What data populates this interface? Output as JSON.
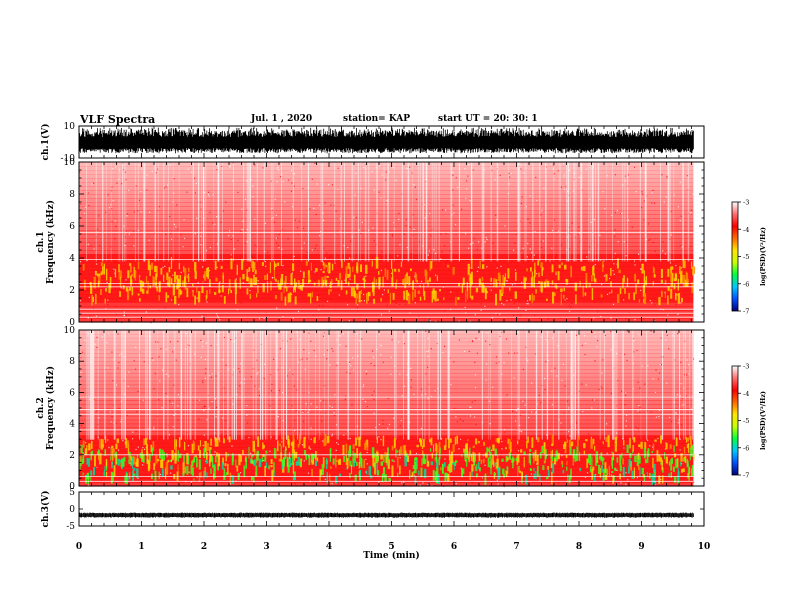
{
  "header": {
    "title": "VLF Spectra",
    "date": "Jul. 1 , 2020",
    "station": "station= KAP",
    "start": "start UT = 20: 30: 1"
  },
  "colorbar": {
    "label": "log(PSD)(V²/Hz)",
    "ticks": [
      "-3",
      "-4",
      "-5",
      "-6",
      "-7"
    ],
    "range": [
      -7,
      -3
    ],
    "colors": [
      "#000078",
      "#0050ff",
      "#00c8ff",
      "#00ff40",
      "#c8ff00",
      "#ffe600",
      "#ff6a00",
      "#ff0000",
      "#ff6f6f",
      "#ffffff"
    ]
  },
  "chart_data": [
    {
      "type": "line",
      "name": "ch1-waveform",
      "ylabel": "ch.1(V)",
      "ylim": [
        -10,
        10
      ],
      "y_tick_labels": [
        "10",
        "-10"
      ],
      "xlim": [
        0,
        10
      ],
      "data_extent_min": [
        0,
        9.83
      ],
      "amplitude_range_V": [
        -7,
        9
      ]
    },
    {
      "type": "heatmap",
      "name": "ch1-spectrogram",
      "ylabel": "ch.1\nFrequency (kHz)",
      "ylim": [
        0,
        10
      ],
      "y_ticks": [
        "0",
        "2",
        "4",
        "6",
        "8",
        "10"
      ],
      "xlim": [
        0,
        10
      ],
      "data_extent_min": [
        0,
        9.83
      ],
      "band_centers_kHz": [
        2.0,
        3.0
      ],
      "enhanced_band_kHz": [
        1.2,
        4.2
      ]
    },
    {
      "type": "heatmap",
      "name": "ch2-spectrogram",
      "ylabel": "ch.2\nFrequency (kHz)",
      "ylim": [
        0,
        10
      ],
      "y_ticks": [
        "0",
        "2",
        "4",
        "6",
        "8",
        "10"
      ],
      "xlim": [
        0,
        10
      ],
      "data_extent_min": [
        0,
        9.83
      ],
      "band_centers_kHz": [
        1.2,
        2.2
      ],
      "enhanced_band_kHz": [
        0.3,
        3.3
      ]
    },
    {
      "type": "line",
      "name": "ch3-waveform",
      "ylabel": "ch.3(V)",
      "ylim": [
        -5,
        5
      ],
      "y_tick_labels": [
        "5",
        "0",
        "-5"
      ],
      "xlim": [
        0,
        10
      ],
      "data_extent_min": [
        0,
        9.83
      ],
      "amplitude_range_V": [
        -2.3,
        -1.3
      ]
    }
  ],
  "xaxis": {
    "label": "Time (min)",
    "ticks": [
      "0",
      "1",
      "2",
      "3",
      "4",
      "5",
      "6",
      "7",
      "8",
      "9",
      "10"
    ],
    "range": [
      0,
      10
    ]
  }
}
